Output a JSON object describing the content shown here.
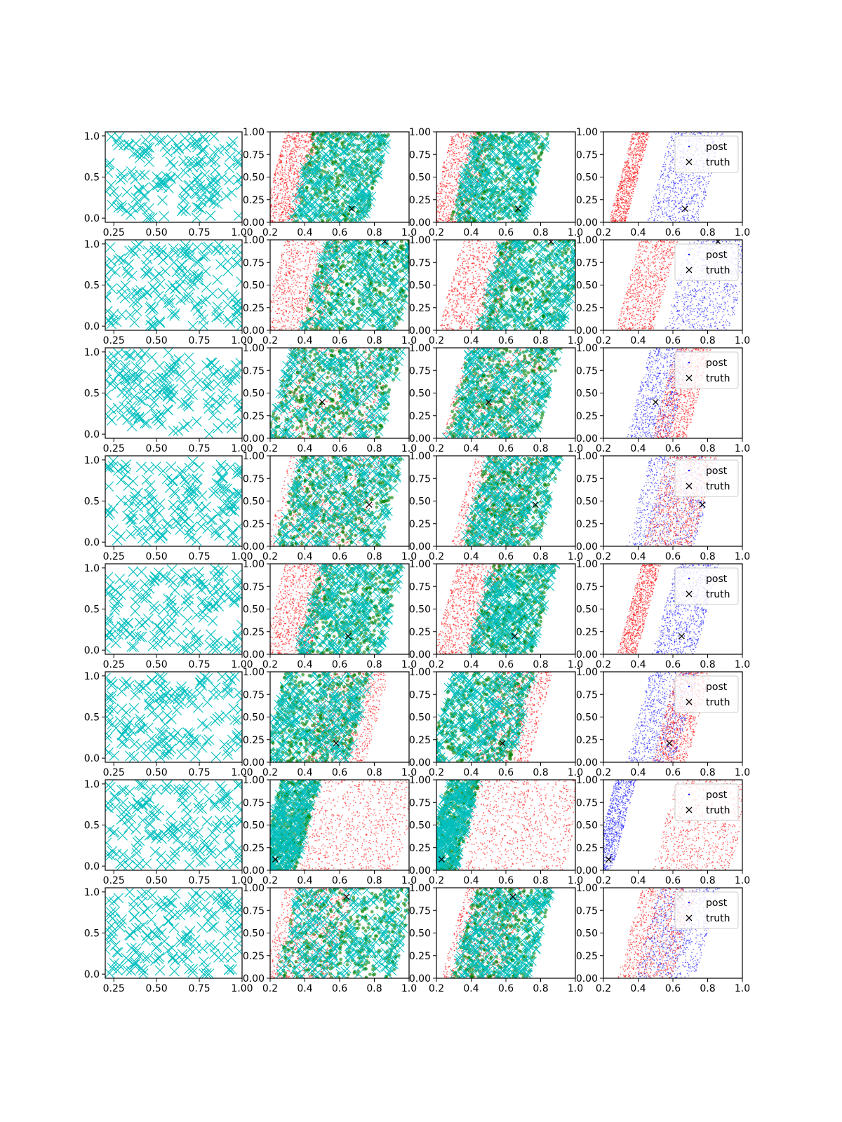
{
  "chart_data": {
    "type": "scatter",
    "grid": false,
    "layout": "8 rows x 4 columns of scatter panels",
    "colors": {
      "col1_samples": "#00bfbf",
      "green_points": "#008000",
      "cyan_points": "#00bfbf",
      "red_points": "#ff0000",
      "blue_points": "#0000ff",
      "truth_marker": "#000000",
      "axes": "#000000",
      "background": "#ffffff"
    },
    "col1_axes": {
      "xlim": [
        0.2,
        1.0
      ],
      "ylim": [
        -0.05,
        1.05
      ],
      "xticks": [
        "0.25",
        "0.50",
        "0.75",
        "1.00"
      ],
      "xtick_values": [
        0.25,
        0.5,
        0.75,
        1.0
      ],
      "yticks": [
        "0.0",
        "0.5",
        "1.0"
      ],
      "ytick_values": [
        0.0,
        0.5,
        1.0
      ],
      "marker": "x"
    },
    "posterior_axes": {
      "xlim": [
        0.2,
        1.0
      ],
      "ylim": [
        0.0,
        1.0
      ],
      "xticks": [
        "0.2",
        "0.4",
        "0.6",
        "0.8",
        "1.0"
      ],
      "xtick_values": [
        0.2,
        0.4,
        0.6,
        0.8,
        1.0
      ],
      "yticks": [
        "0.00",
        "0.25",
        "0.50",
        "0.75",
        "1.00"
      ],
      "ytick_values": [
        0.0,
        0.25,
        0.5,
        0.75,
        1.0
      ]
    },
    "legend": {
      "placement": "upper right",
      "entries": [
        "post",
        "truth"
      ],
      "panel_column": 4
    },
    "rows": [
      {
        "truth": [
          0.67,
          0.15
        ],
        "col2": {
          "red": [
            0.22,
            0.42
          ],
          "green": [
            0.38,
            0.82
          ]
        },
        "col3": {
          "red": [
            0.22,
            0.46
          ],
          "green": [
            0.35,
            0.78
          ]
        },
        "col4": {
          "red": [
            0.3,
            0.4
          ],
          "blue": [
            0.52,
            0.82
          ]
        }
      },
      {
        "truth": [
          0.86,
          0.98
        ],
        "col2": {
          "red": [
            0.22,
            0.56
          ],
          "green": [
            0.45,
            1.0
          ]
        },
        "col3": {
          "red": [
            0.28,
            0.6
          ],
          "green": [
            0.5,
            1.0
          ]
        },
        "col4": {
          "red": [
            0.34,
            0.56
          ],
          "blue": [
            0.62,
            1.0
          ]
        }
      },
      {
        "truth": [
          0.5,
          0.4
        ],
        "col2": {
          "red": [
            0.25,
            0.85
          ],
          "green": [
            0.25,
            0.9
          ]
        },
        "col3": {
          "red": [
            0.3,
            0.8
          ],
          "green": [
            0.32,
            0.85
          ]
        },
        "col4": {
          "red": [
            0.55,
            0.75
          ],
          "blue": [
            0.4,
            0.65
          ]
        }
      },
      {
        "truth": [
          0.77,
          0.46
        ],
        "col2": {
          "red": [
            0.25,
            0.8
          ],
          "green": [
            0.3,
            0.9
          ]
        },
        "col3": {
          "red": [
            0.35,
            0.75
          ],
          "green": [
            0.42,
            0.85
          ]
        },
        "col4": {
          "red": [
            0.5,
            0.78
          ],
          "blue": [
            0.4,
            0.8
          ]
        }
      },
      {
        "truth": [
          0.65,
          0.2
        ],
        "col2": {
          "red": [
            0.22,
            0.5
          ],
          "green": [
            0.42,
            0.9
          ]
        },
        "col3": {
          "red": [
            0.25,
            0.52
          ],
          "green": [
            0.45,
            0.82
          ]
        },
        "col4": {
          "red": [
            0.35,
            0.46
          ],
          "blue": [
            0.55,
            0.8
          ]
        }
      },
      {
        "truth": [
          0.58,
          0.21
        ],
        "col2": {
          "red": [
            0.45,
            0.82
          ],
          "green": [
            0.22,
            0.72
          ]
        },
        "col3": {
          "red": [
            0.48,
            0.8
          ],
          "green": [
            0.22,
            0.7
          ]
        },
        "col4": {
          "red": [
            0.55,
            0.75
          ],
          "blue": [
            0.4,
            0.68
          ]
        }
      },
      {
        "truth": [
          0.23,
          0.12
        ],
        "col2": {
          "red": [
            0.35,
            1.0
          ],
          "green": [
            0.2,
            0.42
          ]
        },
        "col3": {
          "red": [
            0.35,
            1.0
          ],
          "green": [
            0.2,
            0.38
          ]
        },
        "col4": {
          "red": [
            0.55,
            1.0
          ],
          "blue": [
            0.2,
            0.32
          ]
        }
      },
      {
        "truth": [
          0.64,
          0.9
        ],
        "col2": {
          "red": [
            0.22,
            0.62
          ],
          "green": [
            0.3,
            0.98
          ]
        },
        "col3": {
          "red": [
            0.3,
            0.65
          ],
          "green": [
            0.36,
            0.8
          ]
        },
        "col4": {
          "red": [
            0.35,
            0.67
          ],
          "blue": [
            0.45,
            0.8
          ]
        }
      }
    ]
  }
}
